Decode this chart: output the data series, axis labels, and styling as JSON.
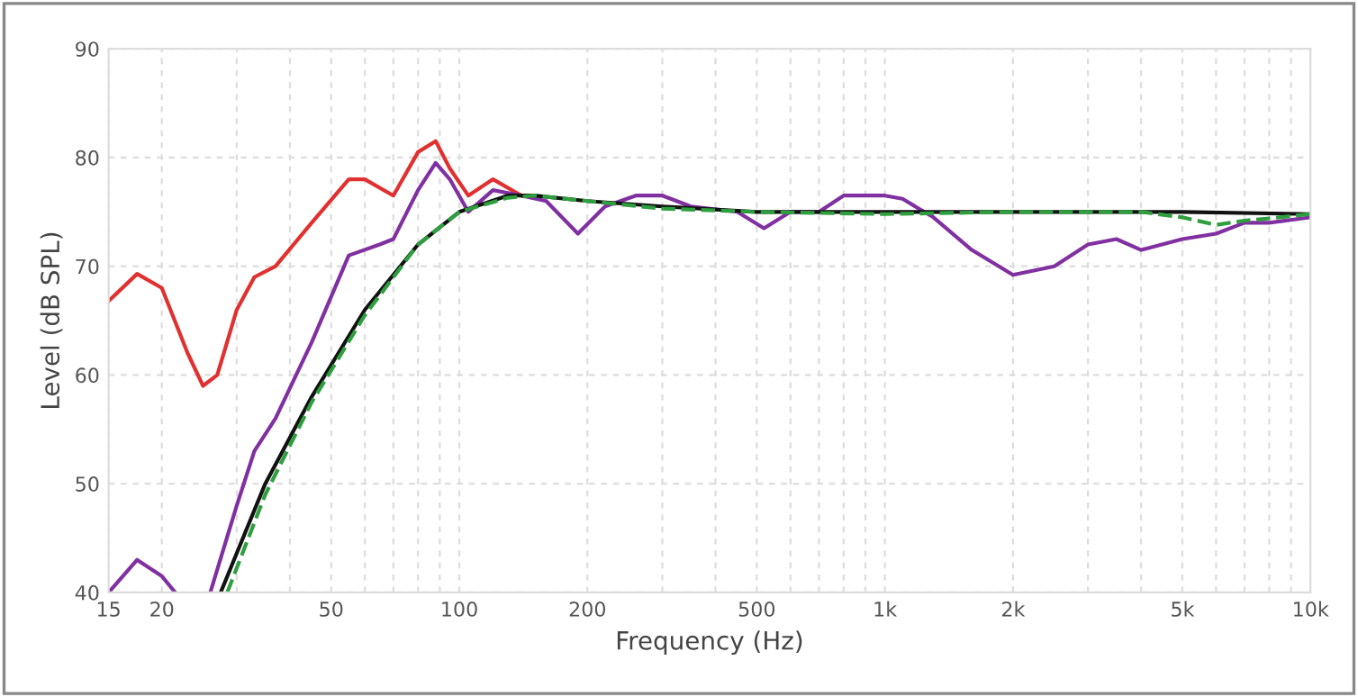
{
  "chart_data": {
    "type": "line",
    "xlabel": "Frequency (Hz)",
    "ylabel": "Level (dB SPL)",
    "log": "x",
    "grid": true,
    "line_style": "solid",
    "marker": "none",
    "xlim": [
      15,
      10000
    ],
    "ylim": [
      40,
      90
    ],
    "xticks": [
      15,
      20,
      {
        "value": 30,
        "label": null
      },
      {
        "value": 40,
        "label": null
      },
      50,
      {
        "value": 60,
        "label": null
      },
      {
        "value": 70,
        "label": null
      },
      {
        "value": 80,
        "label": null
      },
      {
        "value": 90,
        "label": null
      },
      100,
      200,
      {
        "value": 300,
        "label": null
      },
      {
        "value": 400,
        "label": null
      },
      500,
      {
        "value": 600,
        "label": null
      },
      {
        "value": 700,
        "label": null
      },
      {
        "value": 800,
        "label": null
      },
      {
        "value": 900,
        "label": null
      },
      {
        "value": 1000,
        "label": "1k"
      },
      {
        "value": 2000,
        "label": "2k"
      },
      {
        "value": 3000,
        "label": null
      },
      {
        "value": 4000,
        "label": null
      },
      {
        "value": 5000,
        "label": "5k"
      },
      {
        "value": 6000,
        "label": null
      },
      {
        "value": 7000,
        "label": null
      },
      {
        "value": 8000,
        "label": null
      },
      {
        "value": 9000,
        "label": null
      },
      {
        "value": 10000,
        "label": "10k"
      }
    ],
    "yticks": [
      40,
      50,
      60,
      70,
      80,
      90
    ],
    "series": [
      {
        "color": "#e03030",
        "x": [
          15,
          17.5,
          20,
          23,
          25,
          27,
          30,
          33,
          37,
          45,
          55,
          60,
          70,
          80,
          88,
          95,
          105,
          120,
          140
        ],
        "values": [
          66.8,
          69.3,
          68,
          62,
          59,
          60,
          66,
          69,
          70,
          74,
          78,
          78,
          76.5,
          80.5,
          81.5,
          79,
          76.5,
          78,
          76.5
        ]
      },
      {
        "color": "#8030a0",
        "x": [
          15,
          17.5,
          20,
          21.5,
          23,
          26,
          30,
          33,
          37,
          45,
          55,
          65,
          70,
          80,
          88,
          95,
          105,
          120,
          140,
          160,
          190,
          220,
          260,
          300,
          350,
          450,
          520,
          600,
          700,
          800,
          1000,
          1100,
          1300,
          1600,
          2000,
          2500,
          3000,
          3500,
          4000,
          5000,
          6000,
          7000,
          8000,
          10000
        ],
        "values": [
          40,
          43,
          41.5,
          40,
          null,
          40,
          48,
          53,
          56,
          63,
          71,
          72,
          72.5,
          77,
          79.5,
          78,
          75,
          77,
          76.5,
          76,
          73,
          75.5,
          76.5,
          76.5,
          75.5,
          75,
          73.5,
          75,
          75,
          76.5,
          76.5,
          76.2,
          74.5,
          71.5,
          69.2,
          70,
          72,
          72.5,
          71.5,
          72.5,
          73,
          74,
          74,
          74.5
        ]
      },
      {
        "color": "#111111",
        "x": [
          27.5,
          35,
          45,
          60,
          80,
          100,
          130,
          150,
          200,
          300,
          500,
          1000,
          2000,
          5000,
          10000
        ],
        "values": [
          40,
          50,
          58,
          66,
          72,
          75,
          76.5,
          76.5,
          76,
          75.5,
          75,
          75,
          75,
          75,
          74.8
        ]
      },
      {
        "color": "#2e9e3e",
        "line_style": "dashed",
        "x": [
          28.5,
          35,
          45,
          60,
          80,
          100,
          130,
          150,
          200,
          300,
          500,
          1000,
          2000,
          4000,
          5000,
          6000,
          7000,
          8000,
          10000
        ],
        "values": [
          40,
          49,
          57.5,
          65.5,
          72,
          75,
          76.3,
          76.5,
          76,
          75.3,
          75,
          74.8,
          75,
          75,
          74.5,
          73.8,
          74.2,
          74.4,
          74.8
        ]
      }
    ]
  }
}
